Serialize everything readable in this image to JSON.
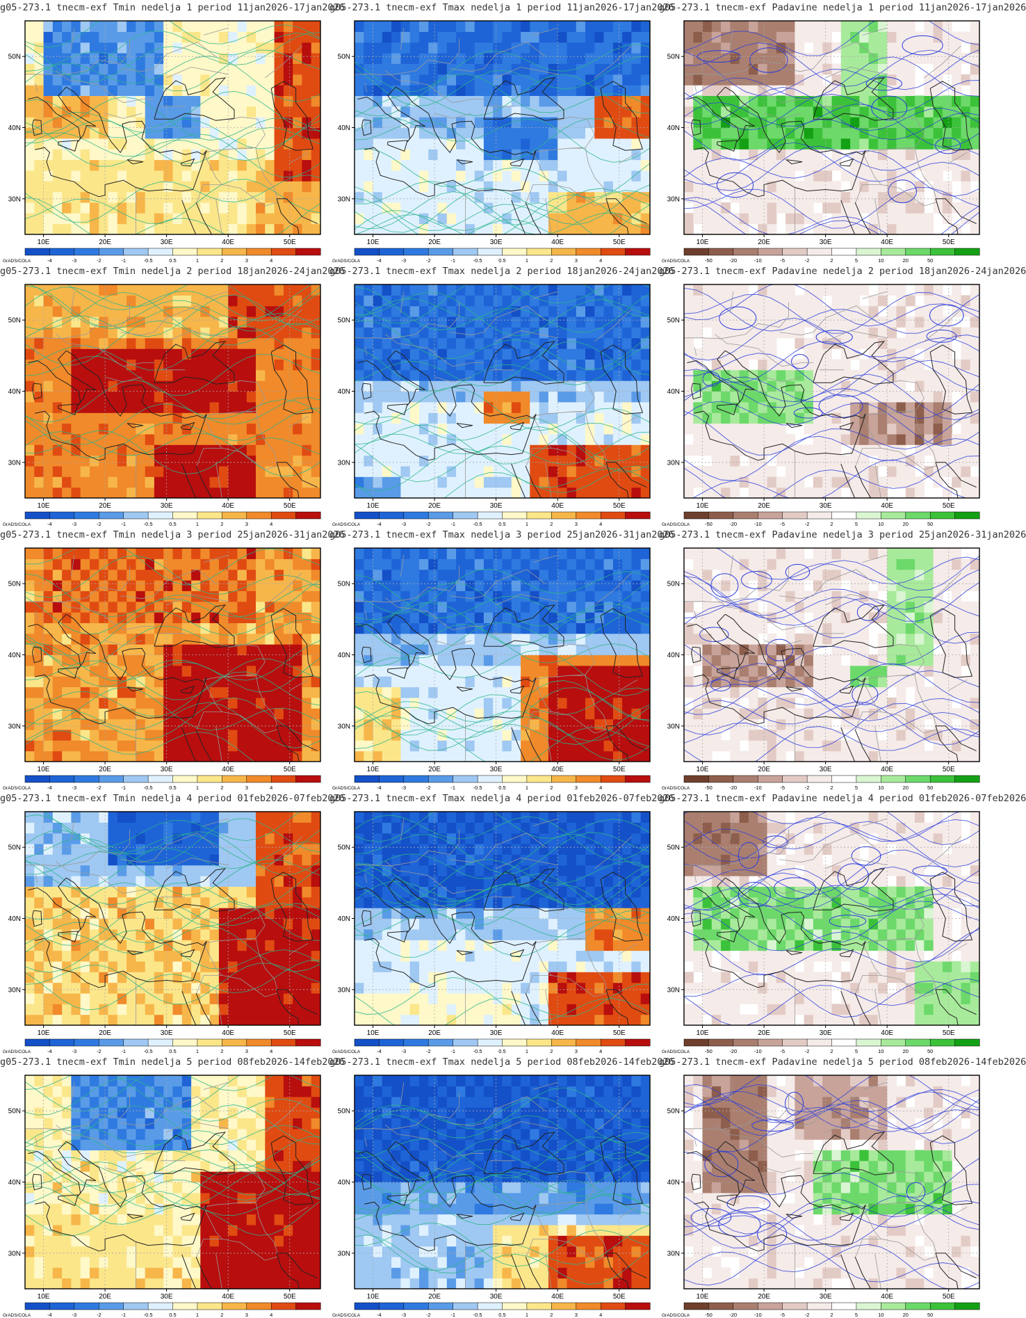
{
  "rows": [
    {
      "week": "1",
      "panels": [
        {
          "title": "g05-273.1 tnecm-exf Tmin nedelja 1 period 11jan2026-17jan2026",
          "var": "temp",
          "scheme": "t1min"
        },
        {
          "title": "g05-273.1 tnecm-exf Tmax nedelja 1 period 11jan2026-17jan2026",
          "var": "temp",
          "scheme": "t1max"
        },
        {
          "title": "g05-273.1 tnecm-exf Padavine nedelja 1 period 11jan2026-17jan2026",
          "var": "precip",
          "scheme": "p1"
        }
      ]
    },
    {
      "week": "2",
      "panels": [
        {
          "title": "g05-273.1 tnecm-exf Tmin nedelja 2 period 18jan2026-24jan2026",
          "var": "temp",
          "scheme": "t2min"
        },
        {
          "title": "g05-273.1 tnecm-exf Tmax nedelja 2 period 18jan2026-24jan2026",
          "var": "temp",
          "scheme": "t2max"
        },
        {
          "title": "g05-273.1 tnecm-exf Padavine nedelja 2 period 18jan2026-24jan2026",
          "var": "precip",
          "scheme": "p2"
        }
      ]
    },
    {
      "week": "3",
      "panels": [
        {
          "title": "g05-273.1 tnecm-exf Tmin nedelja 3 period 25jan2026-31jan2026",
          "var": "temp",
          "scheme": "t3min"
        },
        {
          "title": "g05-273.1 tnecm-exf Tmax nedelja 3 period 25jan2026-31jan2026",
          "var": "temp",
          "scheme": "t3max"
        },
        {
          "title": "g05-273.1 tnecm-exf Padavine nedelja 3 period 25jan2026-31jan2026",
          "var": "precip",
          "scheme": "p3"
        }
      ]
    },
    {
      "week": "4",
      "panels": [
        {
          "title": "g05-273.1 tnecm-exf Tmin nedelja 4 period 01feb2026-07feb2026",
          "var": "temp",
          "scheme": "t4min"
        },
        {
          "title": "g05-273.1 tnecm-exf Tmax nedelja 4 period 01feb2026-07feb2026",
          "var": "temp",
          "scheme": "t4max"
        },
        {
          "title": "g05-273.1 tnecm-exf Padavine nedelja 4 period 01feb2026-07feb2026",
          "var": "precip",
          "scheme": "p4"
        }
      ]
    },
    {
      "week": "5",
      "panels": [
        {
          "title": "g05-273.1 tnecm-exf Tmin nedelja 5 period 08feb2026-14feb2026",
          "var": "temp",
          "scheme": "t5min"
        },
        {
          "title": "g05-273.1 tnecm-exf Tmax nedelja 5 period 08feb2026-14feb2026",
          "var": "temp",
          "scheme": "t5max"
        },
        {
          "title": "g05-273.1 tnecm-exf Padavine nedelja 5 period 08feb2026-14feb2026",
          "var": "precip",
          "scheme": "p5"
        }
      ]
    }
  ],
  "axes": {
    "lon_labels": [
      "10E",
      "20E",
      "30E",
      "40E",
      "50E"
    ],
    "lat_labels": [
      "50N",
      "40N",
      "30N"
    ],
    "lon_values": [
      10,
      20,
      30,
      40,
      50
    ],
    "lat_values": [
      50,
      40,
      30
    ],
    "lon_range": [
      7,
      55
    ],
    "lat_range": [
      25,
      55
    ]
  },
  "credit": "GrADS/COLA",
  "temp_legend": {
    "labels": [
      "-4",
      "-3",
      "-2",
      "-1",
      "-0.5",
      "0.5",
      "1",
      "2",
      "3",
      "4"
    ],
    "colors": [
      "#1450c8",
      "#1e64d7",
      "#2f7ae0",
      "#5a9be8",
      "#9fc8f2",
      "#dff1ff",
      "#fff8c8",
      "#fbe68a",
      "#f7b64a",
      "#f08a2a",
      "#e04b12",
      "#b80e0e"
    ]
  },
  "precip_legend": {
    "labels": [
      "-50",
      "-20",
      "-10",
      "-5",
      "-2",
      "2",
      "5",
      "10",
      "20",
      "50"
    ],
    "colors": [
      "#6e3f2c",
      "#8e5e4c",
      "#aa7f70",
      "#c8a39a",
      "#e3cbc5",
      "#f5ebe9",
      "#ffffff",
      "#d9f5d2",
      "#a8ea9b",
      "#6cd96a",
      "#3cc23a",
      "#14a014"
    ]
  },
  "contour_colors": {
    "temp": "#2ab58a",
    "precip": "#2a3ddb",
    "coast": "#222222",
    "border": "#999999"
  }
}
